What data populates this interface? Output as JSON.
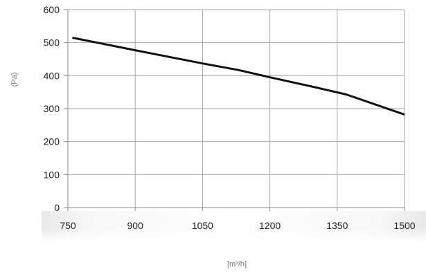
{
  "chart_data": {
    "type": "line",
    "title": "",
    "xlabel": "[m³/h]",
    "ylabel": "(Pa)",
    "xlim": [
      750,
      1500
    ],
    "ylim": [
      0,
      600
    ],
    "x_ticks": [
      "750",
      "900",
      "1050",
      "1200",
      "1350",
      "1500"
    ],
    "y_ticks": [
      "0",
      "100",
      "200",
      "300",
      "400",
      "500",
      "600"
    ],
    "grid": true,
    "legend": "none",
    "series": [
      {
        "color": "#111111",
        "x": [
          760,
          900,
          1050,
          1130,
          1200,
          1300,
          1370,
          1500
        ],
        "y": [
          515,
          477,
          437,
          417,
          395,
          365,
          343,
          282
        ]
      }
    ]
  }
}
